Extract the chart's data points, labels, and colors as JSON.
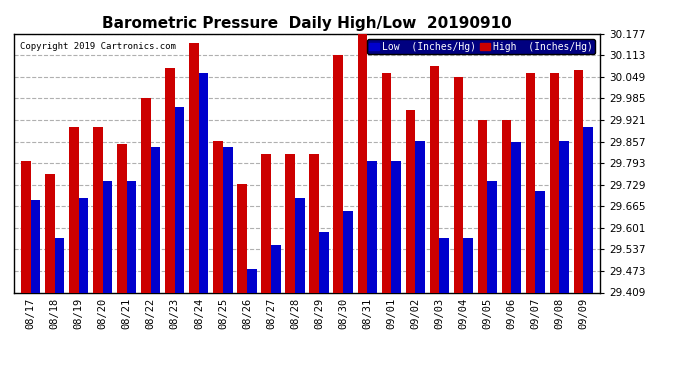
{
  "title": "Barometric Pressure  Daily High/Low  20190910",
  "copyright": "Copyright 2019 Cartronics.com",
  "categories": [
    "08/17",
    "08/18",
    "08/19",
    "08/20",
    "08/21",
    "08/22",
    "08/23",
    "08/24",
    "08/25",
    "08/26",
    "08/27",
    "08/28",
    "08/29",
    "08/30",
    "08/31",
    "09/01",
    "09/02",
    "09/03",
    "09/04",
    "09/05",
    "09/06",
    "09/07",
    "09/08",
    "09/09"
  ],
  "low_values": [
    29.685,
    29.57,
    29.69,
    29.74,
    29.74,
    29.84,
    29.96,
    30.06,
    29.84,
    29.48,
    29.55,
    29.69,
    29.59,
    29.65,
    29.8,
    29.8,
    29.86,
    29.57,
    29.57,
    29.74,
    29.855,
    29.71,
    29.86,
    29.9
  ],
  "high_values": [
    29.8,
    29.76,
    29.9,
    29.9,
    29.85,
    29.985,
    30.075,
    30.15,
    29.86,
    29.73,
    29.82,
    29.82,
    29.82,
    30.113,
    30.177,
    30.06,
    29.95,
    30.08,
    30.049,
    29.921,
    29.921,
    30.06,
    30.06,
    30.07
  ],
  "low_color": "#0000cc",
  "high_color": "#cc0000",
  "bg_color": "#ffffff",
  "ylim_min": 29.409,
  "ylim_max": 30.177,
  "yticks": [
    29.409,
    29.473,
    29.537,
    29.601,
    29.665,
    29.729,
    29.793,
    29.857,
    29.921,
    29.985,
    30.049,
    30.113,
    30.177
  ],
  "grid_color": "#b0b0b0",
  "title_fontsize": 11,
  "legend_low_label": "Low  (Inches/Hg)",
  "legend_high_label": "High  (Inches/Hg)"
}
